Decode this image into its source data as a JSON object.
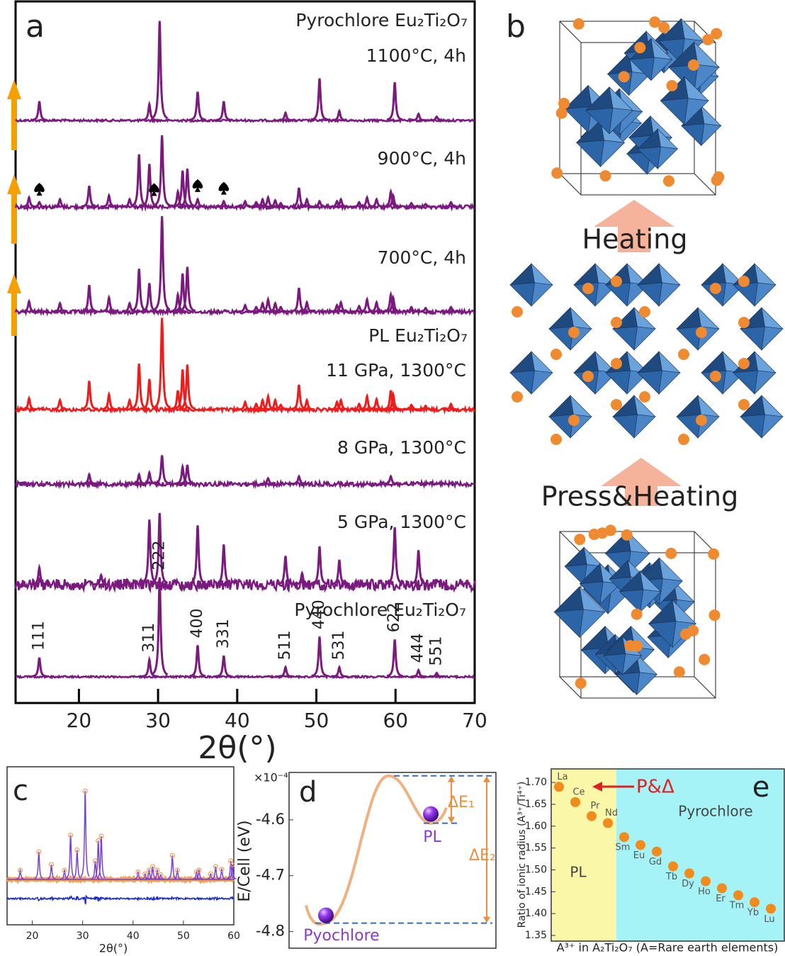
{
  "chart_data": [
    {
      "type": "line",
      "label": "a",
      "xlabel": "2θ(°)",
      "xlim": [
        12,
        70
      ],
      "xticks": [
        20,
        30,
        40,
        50,
        60,
        70
      ],
      "series": [
        {
          "phase": "Pyrochlore Eu₂Ti₂O₇",
          "name": "1100°C, 4h",
          "color": "#7b1a7e",
          "x": [
            15,
            28.9,
            30.2,
            35,
            38.3,
            46.1,
            50.4,
            52.9,
            59.9,
            62.9,
            65.2
          ],
          "values": [
            0.2,
            0.17,
            1.04,
            0.3,
            0.2,
            0.08,
            0.44,
            0.1,
            0.4,
            0.07,
            0.04
          ]
        },
        {
          "name": "900°C, 4h",
          "color": "#7b1a7e",
          "x": [
            13.7,
            17.6,
            21.3,
            23.8,
            26.4,
            27.6,
            28.9,
            30.5,
            32.5,
            33.1,
            33.7,
            41.0,
            42.4,
            43.2,
            43.9,
            44.8,
            45.5,
            47.8,
            48.8,
            52.6,
            53.1,
            55.4,
            56.4,
            57.6,
            59.4,
            59.7,
            62.0,
            63.8,
            67.0,
            15.0,
            35.0,
            38.3,
            50.4
          ],
          "values": [
            0.1,
            0.08,
            0.22,
            0.12,
            0.08,
            0.55,
            0.45,
            0.75,
            0.16,
            0.38,
            0.4,
            0.06,
            0.05,
            0.08,
            0.1,
            0.07,
            0.04,
            0.2,
            0.08,
            0.06,
            0.08,
            0.05,
            0.1,
            0.08,
            0.16,
            0.12,
            0.04,
            0.03,
            0.05,
            0.05,
            0.08,
            0.06,
            0.06
          ],
          "markers": [
            15,
            29.5,
            35,
            38.3
          ]
        },
        {
          "name": "700°C, 4h",
          "color": "#7b1a7e",
          "x": [
            13.7,
            17.6,
            21.3,
            23.8,
            26.4,
            27.6,
            28.9,
            30.5,
            32.5,
            33.1,
            33.7,
            41.0,
            42.4,
            43.2,
            43.9,
            44.8,
            45.5,
            47.8,
            48.8,
            52.6,
            53.1,
            55.4,
            56.4,
            57.6,
            59.4,
            59.7,
            62.0,
            63.8,
            67.0
          ],
          "values": [
            0.11,
            0.09,
            0.28,
            0.15,
            0.09,
            0.45,
            0.3,
            1.0,
            0.18,
            0.4,
            0.47,
            0.07,
            0.05,
            0.09,
            0.13,
            0.09,
            0.05,
            0.25,
            0.1,
            0.07,
            0.1,
            0.06,
            0.13,
            0.1,
            0.18,
            0.15,
            0.05,
            0.04,
            0.05
          ]
        },
        {
          "phase": "PL Eu₂Ti₂O₇",
          "name": "11 GPa, 1300°C",
          "color": "#ee1c1c",
          "x": [
            13.7,
            17.6,
            21.3,
            23.8,
            26.4,
            27.6,
            28.9,
            30.5,
            32.5,
            33.1,
            33.7,
            41.0,
            42.4,
            43.2,
            43.9,
            44.8,
            45.5,
            47.8,
            48.8,
            52.6,
            53.1,
            55.4,
            56.4,
            57.6,
            59.4,
            59.7,
            62.0,
            63.8,
            67.0
          ],
          "values": [
            0.12,
            0.1,
            0.3,
            0.16,
            0.1,
            0.48,
            0.32,
            0.96,
            0.2,
            0.42,
            0.47,
            0.08,
            0.06,
            0.1,
            0.14,
            0.1,
            0.05,
            0.26,
            0.1,
            0.08,
            0.1,
            0.06,
            0.14,
            0.11,
            0.2,
            0.16,
            0.05,
            0.04,
            0.06
          ]
        },
        {
          "name": "8 GPa, 1300°C",
          "color": "#7b1a7e",
          "x": [
            21.3,
            27.6,
            28.9,
            30.5,
            33.1,
            33.7,
            43.9,
            47.8,
            59.4
          ],
          "values": [
            0.1,
            0.1,
            0.12,
            0.3,
            0.18,
            0.2,
            0.06,
            0.08,
            0.08
          ]
        },
        {
          "name": "5 GPa, 1300°C",
          "color": "#7b1a7e",
          "x": [
            15,
            22.8,
            28.9,
            30.2,
            35,
            38.3,
            46.1,
            48.2,
            50.4,
            52.9,
            59.9,
            62.9
          ],
          "values": [
            0.18,
            0.1,
            0.68,
            0.75,
            0.62,
            0.42,
            0.3,
            0.12,
            0.4,
            0.26,
            0.6,
            0.36
          ]
        },
        {
          "name": "Pyrochlore Eu₂Ti₂O₇",
          "color": "#7b1a7e",
          "x": [
            15,
            28.9,
            30.2,
            35,
            38.3,
            46.1,
            50.4,
            52.9,
            59.9,
            62.9,
            65.2
          ],
          "values": [
            0.2,
            0.18,
            1.04,
            0.33,
            0.22,
            0.1,
            0.42,
            0.1,
            0.39,
            0.07,
            0.04
          ],
          "peak_labels": [
            "111",
            "311",
            "222",
            "400",
            "331",
            "511",
            "440",
            "531",
            "622",
            "444",
            "551"
          ]
        }
      ]
    },
    {
      "type": "line",
      "label": "c",
      "xlabel": "2θ(°)",
      "xlim": [
        15,
        60
      ],
      "xticks": [
        20,
        30,
        40,
        50,
        60
      ]
    },
    {
      "type": "line",
      "label": "d",
      "ylabel": "E/Cell (eV)",
      "y_multiplier": "×10⁻⁴",
      "ylim": [
        -4.83,
        -4.515
      ],
      "yticks": [
        -4.6,
        -4.7,
        -4.8
      ],
      "categories": [
        "Pyochlore",
        null,
        "PL"
      ],
      "values": [
        -4.785,
        -4.521,
        -4.606
      ],
      "annotations": [
        "ΔE₁",
        "ΔE₂"
      ]
    },
    {
      "type": "scatter",
      "label": "e",
      "ylabel": "Ratio of ionic radius (A³⁺/Ti⁴⁺)",
      "xlabel": "A³⁺ in A₂Ti₂O₇ (A=Rare earth elements)",
      "ylim": [
        1.337,
        1.731
      ],
      "yticks": [
        1.35,
        {
          "value": 1.4,
          "label": "1.40"
        },
        1.45,
        {
          "value": 1.5,
          "label": "1.50"
        },
        1.55,
        {
          "value": 1.6,
          "label": "1.60"
        },
        1.65,
        {
          "value": 1.7,
          "label": "1.70"
        }
      ],
      "categories": [
        "La",
        "Ce",
        "Pr",
        "Nd",
        "Sm",
        "Eu",
        "Gd",
        "Tb",
        "Dy",
        "Ho",
        "Er",
        "Tm",
        "Yb",
        "Lu"
      ],
      "values": [
        1.69,
        1.655,
        1.623,
        1.607,
        1.575,
        1.557,
        1.542,
        1.508,
        1.492,
        1.474,
        1.458,
        1.442,
        1.426,
        1.411
      ],
      "color": "#f28a1c",
      "regions": [
        "PL",
        "Pyrochlore"
      ],
      "annotation": "P&Δ"
    }
  ],
  "diagram": {
    "label": "b",
    "steps": [
      "Heating",
      "Press&Heating"
    ]
  }
}
